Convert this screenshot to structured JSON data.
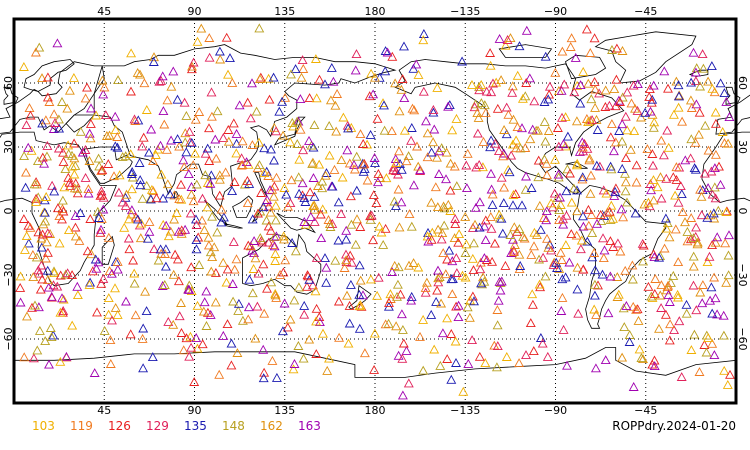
{
  "map": {
    "projection": "cylindrical-equidistant",
    "lon_range": [
      0,
      360
    ],
    "lat_range": [
      -90,
      90
    ],
    "grid": true,
    "grid_style": "dotted",
    "top_lon_ticks": [
      "45",
      "90",
      "135",
      "180",
      "−135",
      "−90",
      "−45"
    ],
    "bottom_lon_ticks": [
      "45",
      "90",
      "135",
      "180",
      "−135",
      "−90",
      "−45"
    ],
    "left_lat_ticks": [
      "60",
      "30",
      "0",
      "−30",
      "−60"
    ],
    "right_lat_ticks": [
      "60",
      "30",
      "0",
      "−30",
      "−60"
    ],
    "marker": "triangle-outline",
    "coastline_color": "#000000"
  },
  "legend": {
    "placement": "bottom-left",
    "items": [
      {
        "label": "103",
        "color": "#f0b000"
      },
      {
        "label": "119",
        "color": "#f07a20"
      },
      {
        "label": "126",
        "color": "#e82020"
      },
      {
        "label": "129",
        "color": "#e0205a"
      },
      {
        "label": "135",
        "color": "#1a1ab0"
      },
      {
        "label": "148",
        "color": "#b8a020"
      },
      {
        "label": "162",
        "color": "#e09010"
      },
      {
        "label": "163",
        "color": "#a000b0"
      }
    ]
  },
  "product_label": "ROPPdry.2024-01-20"
}
